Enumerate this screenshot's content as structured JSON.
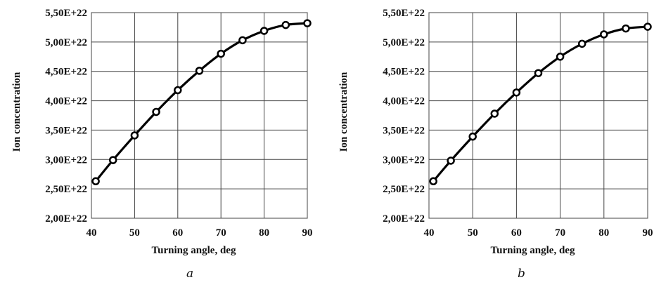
{
  "chart_data": [
    {
      "type": "line",
      "caption": "a",
      "xlabel": "Turning angle, deg",
      "ylabel": "Ion concentration",
      "xlim": [
        40,
        90
      ],
      "ylim": [
        2e+22,
        5.5e+22
      ],
      "x_ticks": [
        "40",
        "50",
        "60",
        "70",
        "80",
        "90"
      ],
      "y_ticks": [
        "2,00E+22",
        "2,50E+22",
        "3,00E+22",
        "3,50E+22",
        "4,00E+22",
        "4,50E+22",
        "5,00E+22",
        "5,50E+22"
      ],
      "grid": true,
      "series": [
        {
          "x": [
            41,
            45,
            50,
            55,
            60,
            65,
            70,
            75,
            80,
            85,
            90
          ],
          "y": [
            2.63e+22,
            2.99e+22,
            3.41e+22,
            3.81e+22,
            4.18e+22,
            4.51e+22,
            4.8e+22,
            5.03e+22,
            5.19e+22,
            5.29e+22,
            5.32e+22
          ],
          "color": "#000000"
        }
      ]
    },
    {
      "type": "line",
      "caption": "b",
      "xlabel": "Turning angle, deg",
      "ylabel": "Ion concentration",
      "xlim": [
        40,
        90
      ],
      "ylim": [
        2e+22,
        5.5e+22
      ],
      "x_ticks": [
        "40",
        "50",
        "60",
        "70",
        "80",
        "90"
      ],
      "y_ticks": [
        "2,00E+22",
        "2,50E+22",
        "3,00E+22",
        "3,50E+22",
        "4,00E+22",
        "4,50E+22",
        "5,00E+22",
        "5,50E+22"
      ],
      "grid": true,
      "series": [
        {
          "x": [
            41,
            45,
            50,
            55,
            60,
            65,
            70,
            75,
            80,
            85,
            90
          ],
          "y": [
            2.63e+22,
            2.98e+22,
            3.39e+22,
            3.78e+22,
            4.14e+22,
            4.47e+22,
            4.75e+22,
            4.97e+22,
            5.13e+22,
            5.23e+22,
            5.26e+22
          ],
          "color": "#000000"
        }
      ]
    }
  ]
}
